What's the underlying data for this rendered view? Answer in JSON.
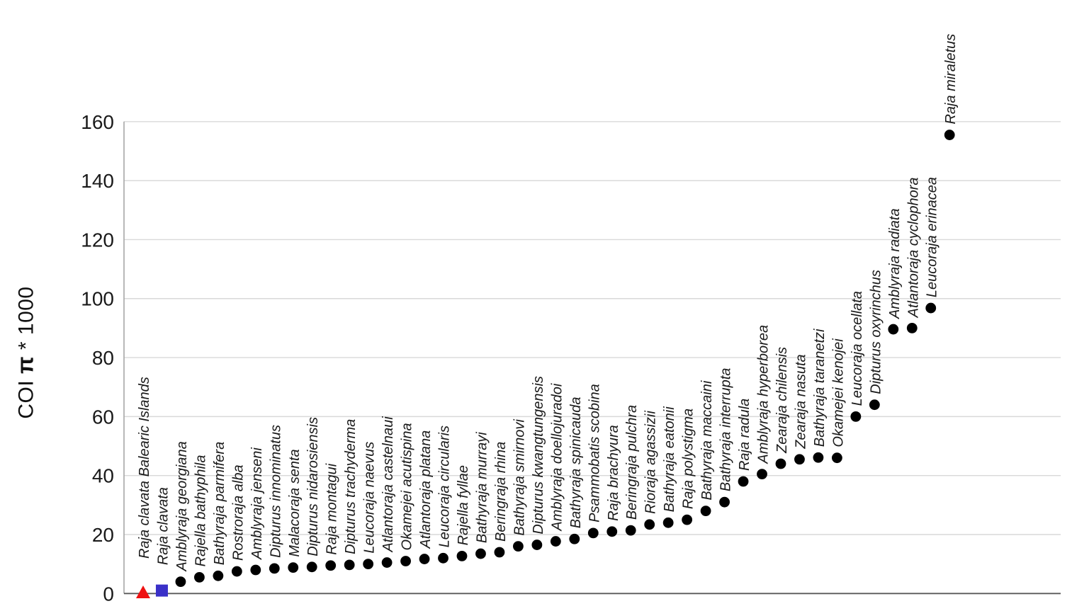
{
  "chart_data": {
    "type": "scatter",
    "title": "",
    "xlabel": "",
    "ylabel": "COI π * 1000",
    "ylabel_parts": {
      "prefix": "COI ",
      "pi": "π",
      "suffix": " * 1000"
    },
    "ylim": [
      0,
      160
    ],
    "yticks": [
      0,
      20,
      40,
      60,
      80,
      100,
      120,
      140,
      160
    ],
    "grid": "horizontal-light-gray",
    "legend": "none",
    "marker_colors": {
      "circle": "#000000",
      "triangle": "#ee1111",
      "square": "#3a30c8"
    },
    "axis_colors": {
      "gridline": "#d9d9d9",
      "y_axis_line": "#a6a6a6",
      "x_axis_line": "#595959"
    },
    "points": [
      {
        "label": "Raja clavata Balearic Islands",
        "value": 0.3,
        "marker": "triangle"
      },
      {
        "label": "Raja clavata",
        "value": 1,
        "marker": "square"
      },
      {
        "label": "Amblyraja georgiana",
        "value": 4,
        "marker": "circle"
      },
      {
        "label": "Rajella bathyphila",
        "value": 5.5,
        "marker": "circle"
      },
      {
        "label": "Bathyraja parmifera",
        "value": 6,
        "marker": "circle"
      },
      {
        "label": "Rostroraja alba",
        "value": 7.5,
        "marker": "circle"
      },
      {
        "label": "Amblyraja jenseni",
        "value": 8,
        "marker": "circle"
      },
      {
        "label": "Dipturus innominatus",
        "value": 8.5,
        "marker": "circle"
      },
      {
        "label": "Malacoraja senta",
        "value": 8.8,
        "marker": "circle"
      },
      {
        "label": "Dipturus nidarosiensis",
        "value": 9,
        "marker": "circle"
      },
      {
        "label": "Raja montagui",
        "value": 9.5,
        "marker": "circle"
      },
      {
        "label": "Dipturus trachyderma",
        "value": 9.7,
        "marker": "circle"
      },
      {
        "label": "Leucoraja naevus",
        "value": 10,
        "marker": "circle"
      },
      {
        "label": "Atlantoraja castelnaui",
        "value": 10.5,
        "marker": "circle"
      },
      {
        "label": "Okamejei acutispina",
        "value": 11,
        "marker": "circle"
      },
      {
        "label": "Atlantoraja platana",
        "value": 11.7,
        "marker": "circle"
      },
      {
        "label": "Leucoraja circularis",
        "value": 12,
        "marker": "circle"
      },
      {
        "label": "Rajella fyllae",
        "value": 12.7,
        "marker": "circle"
      },
      {
        "label": "Bathyraja murrayi",
        "value": 13.5,
        "marker": "circle"
      },
      {
        "label": "Beringraja rhina",
        "value": 14,
        "marker": "circle"
      },
      {
        "label": "Bathyraja smirnovi",
        "value": 16,
        "marker": "circle"
      },
      {
        "label": "Dipturus kwangtungensis",
        "value": 16.5,
        "marker": "circle"
      },
      {
        "label": "Amblyraja doellojuradoi",
        "value": 17.7,
        "marker": "circle"
      },
      {
        "label": "Bathyraja spinicauda",
        "value": 18.5,
        "marker": "circle"
      },
      {
        "label": "Psammobatis scobina",
        "value": 20.5,
        "marker": "circle"
      },
      {
        "label": "Raja brachyura",
        "value": 21,
        "marker": "circle"
      },
      {
        "label": "Beringraja pulchra",
        "value": 21.4,
        "marker": "circle"
      },
      {
        "label": "Rioraja agassizii",
        "value": 23.4,
        "marker": "circle"
      },
      {
        "label": "Bathyraja eatonii",
        "value": 24,
        "marker": "circle"
      },
      {
        "label": "Raja polystigma",
        "value": 25,
        "marker": "circle"
      },
      {
        "label": "Bathyraja maccaini",
        "value": 28,
        "marker": "circle"
      },
      {
        "label": "Bathyraja interrupta",
        "value": 31,
        "marker": "circle"
      },
      {
        "label": "Raja radula",
        "value": 38,
        "marker": "circle"
      },
      {
        "label": "Amblyraja hyperborea",
        "value": 40.5,
        "marker": "circle"
      },
      {
        "label": "Zearaja chilensis",
        "value": 44,
        "marker": "circle"
      },
      {
        "label": "Zearaja nasuta",
        "value": 45.5,
        "marker": "circle"
      },
      {
        "label": "Bathyraja taranetzi",
        "value": 46.1,
        "marker": "circle"
      },
      {
        "label": "Okamejei kenojei",
        "value": 46,
        "marker": "circle"
      },
      {
        "label": "Leucoraja ocellata",
        "value": 60,
        "marker": "circle"
      },
      {
        "label": "Dipturus oxyrinchus",
        "value": 64,
        "marker": "circle"
      },
      {
        "label": "Amblyraja radiata",
        "value": 89.6,
        "marker": "circle"
      },
      {
        "label": "Atlantoraja cyclophora",
        "value": 90,
        "marker": "circle"
      },
      {
        "label": "Leucoraja erinacea",
        "value": 96.8,
        "marker": "circle"
      },
      {
        "label": "Raja miraletus",
        "value": 155.5,
        "marker": "circle"
      }
    ]
  }
}
